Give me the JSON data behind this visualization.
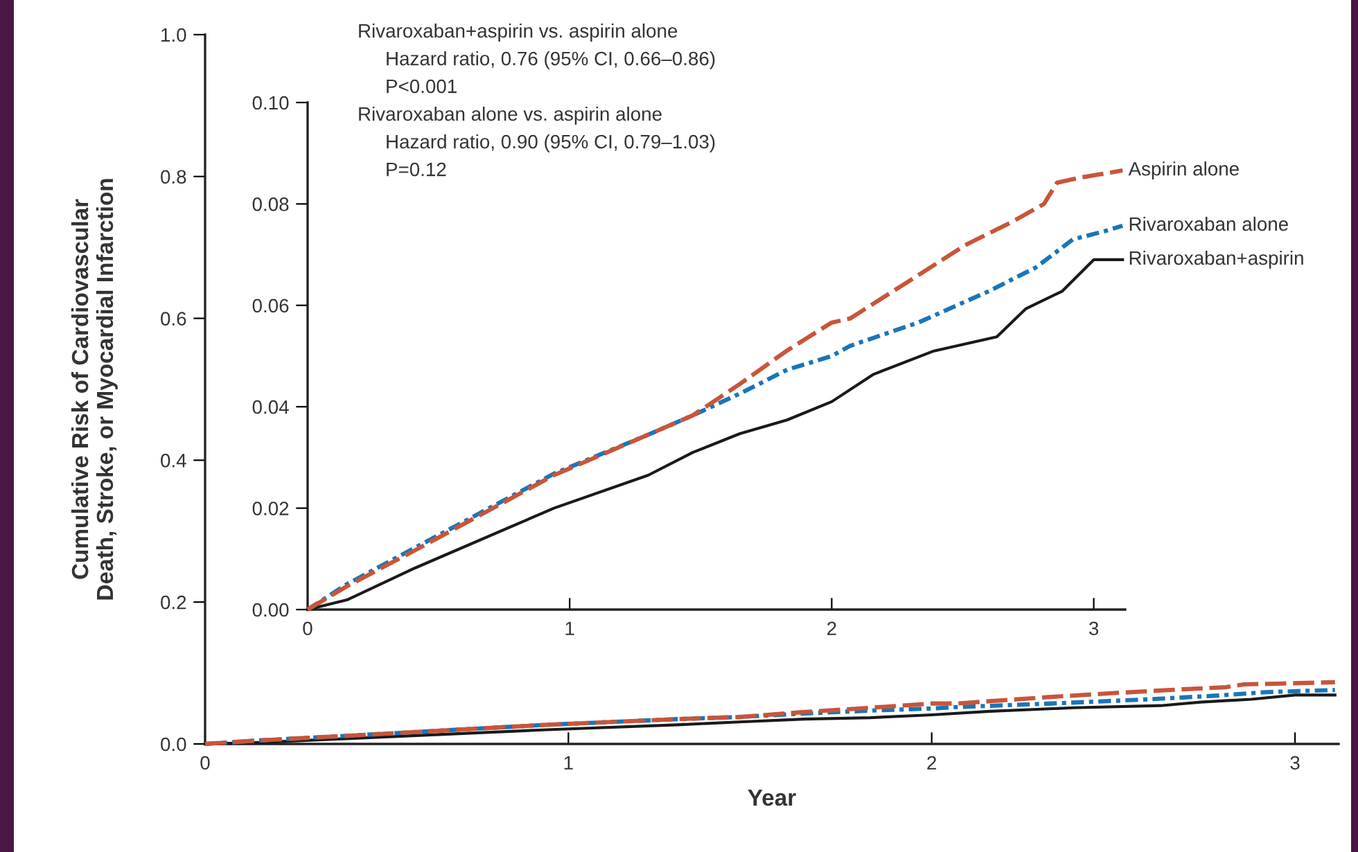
{
  "chart_data": [
    {
      "type": "line",
      "xlabel": "Year",
      "ylabel": "Cumulative Risk of Cardiovascular\nDeath, Stroke, or Myocardial Infarction",
      "xlim": [
        0,
        3.12
      ],
      "ylim": [
        0,
        1.0
      ],
      "xticks": [
        0,
        1,
        2,
        3
      ],
      "yticks": [
        {
          "value": 0,
          "label": "0.0"
        },
        0.2,
        0.4,
        0.6,
        0.8,
        {
          "value": 1,
          "label": "1.0"
        }
      ],
      "grid": false,
      "legend": false,
      "marker": "none",
      "series": [
        {
          "color": "#1a1a1a",
          "line_style": "solid",
          "x": [
            0,
            0.15,
            0.41,
            0.94,
            1.3,
            1.47,
            1.65,
            1.83,
            2.0,
            2.16,
            2.39,
            2.63,
            2.74,
            2.88,
            3.0,
            3.11
          ],
          "values": [
            0,
            0.002,
            0.008,
            0.02,
            0.027,
            0.031,
            0.035,
            0.037,
            0.041,
            0.046,
            0.051,
            0.054,
            0.059,
            0.063,
            0.069,
            0.069
          ]
        },
        {
          "color": "#1a75b8",
          "line_style": "dotted",
          "x": [
            0,
            0.15,
            0.41,
            0.94,
            1.3,
            1.47,
            1.65,
            1.83,
            2.0,
            2.07,
            2.33,
            2.6,
            2.78,
            2.92,
            3.04,
            3.11
          ],
          "values": [
            0,
            0.005,
            0.012,
            0.027,
            0.035,
            0.038,
            0.043,
            0.047,
            0.05,
            0.052,
            0.057,
            0.063,
            0.068,
            0.073,
            0.075,
            0.076
          ]
        },
        {
          "color": "#c8553a",
          "line_style": "dashed",
          "x": [
            0,
            0.15,
            0.41,
            0.94,
            1.3,
            1.47,
            1.65,
            1.83,
            2.0,
            2.07,
            2.32,
            2.51,
            2.69,
            2.81,
            2.86,
            2.95,
            3.11
          ],
          "values": [
            0,
            0.005,
            0.012,
            0.027,
            0.035,
            0.038,
            0.045,
            0.051,
            0.057,
            0.057,
            0.066,
            0.072,
            0.077,
            0.08,
            0.084,
            0.085,
            0.087
          ]
        }
      ]
    },
    {
      "type": "line",
      "xlim": [
        0,
        3.12
      ],
      "ylim": [
        0,
        0.1
      ],
      "xticks": [
        0,
        1,
        2,
        3
      ],
      "yticks": [
        {
          "value": 0,
          "label": "0.00"
        },
        {
          "value": 0.02,
          "label": "0.02"
        },
        {
          "value": 0.04,
          "label": "0.04"
        },
        {
          "value": 0.06,
          "label": "0.06"
        },
        {
          "value": 0.08,
          "label": "0.08"
        },
        {
          "value": 0.1,
          "label": "0.10"
        }
      ],
      "grid": false,
      "legend": false,
      "marker": "none",
      "annotations": [
        "Rivaroxaban+aspirin vs. aspirin alone\nHazard ratio, 0.76 (95% CI, 0.66–0.86)\nP<0.001",
        "Rivaroxaban alone vs. aspirin alone\nHazard ratio, 0.90 (95% CI, 0.79–1.03)\nP=0.12"
      ],
      "series": [
        {
          "name": "Rivaroxaban+aspirin",
          "color": "#1a1a1a",
          "line_style": "solid",
          "x": [
            0,
            0.15,
            0.41,
            0.94,
            1.3,
            1.47,
            1.65,
            1.83,
            2.0,
            2.16,
            2.39,
            2.63,
            2.74,
            2.88,
            3.0,
            3.11
          ],
          "values": [
            0,
            0.0019,
            0.0082,
            0.02,
            0.0265,
            0.031,
            0.0347,
            0.0374,
            0.041,
            0.0464,
            0.051,
            0.0538,
            0.0593,
            0.0628,
            0.069,
            0.069
          ]
        },
        {
          "name": "Rivaroxaban alone",
          "color": "#1a75b8",
          "line_style": "dotted",
          "x": [
            0,
            0.15,
            0.41,
            0.94,
            1.3,
            1.47,
            1.65,
            1.83,
            2.0,
            2.07,
            2.33,
            2.6,
            2.78,
            2.92,
            3.04,
            3.11
          ],
          "values": [
            0,
            0.005,
            0.0122,
            0.0268,
            0.0345,
            0.0383,
            0.0426,
            0.0473,
            0.05,
            0.052,
            0.0566,
            0.0628,
            0.0675,
            0.073,
            0.0746,
            0.0757
          ]
        },
        {
          "name": "Aspirin alone",
          "color": "#c8553a",
          "line_style": "dashed",
          "x": [
            0,
            0.15,
            0.41,
            0.94,
            1.3,
            1.47,
            1.65,
            1.83,
            2.0,
            2.07,
            2.32,
            2.51,
            2.69,
            2.81,
            2.86,
            2.95,
            3.11
          ],
          "values": [
            0,
            0.0046,
            0.0117,
            0.0265,
            0.0345,
            0.0383,
            0.0445,
            0.0511,
            0.0566,
            0.0574,
            0.0656,
            0.0719,
            0.0765,
            0.08,
            0.0842,
            0.0852,
            0.0866
          ]
        }
      ]
    }
  ]
}
